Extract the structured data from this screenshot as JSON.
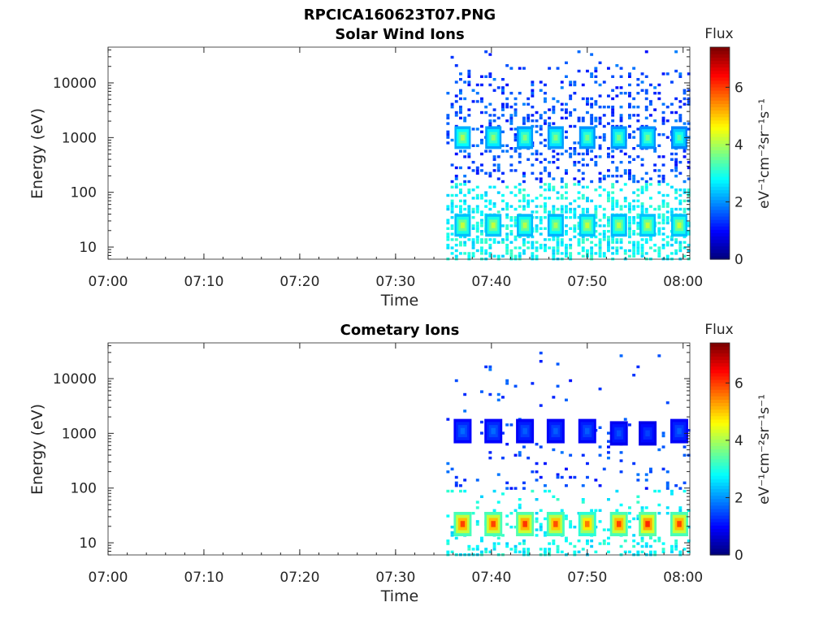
{
  "figure": {
    "title": "RPCICA160623T07.PNG"
  },
  "chart_data": [
    {
      "type": "heatmap",
      "title": "Solar Wind Ions",
      "xlabel": "Time",
      "ylabel": "Energy (eV)",
      "x_tick_labels": [
        "07:00",
        "07:10",
        "07:20",
        "07:30",
        "07:40",
        "07:50",
        "08:00"
      ],
      "x_range_minutes": [
        0,
        60.7
      ],
      "y_scale": "log",
      "y_range": [
        6,
        45000
      ],
      "y_tick_labels": [
        "10",
        "100",
        "1000",
        "10000"
      ],
      "y_tick_values": [
        10,
        100,
        1000,
        10000
      ],
      "data_start_minute": 35.3,
      "colorbar": {
        "title": "Flux",
        "label": "eV⁻¹cm⁻²sr⁻¹s⁻¹",
        "range": [
          0,
          7.4
        ],
        "ticks": [
          0,
          2,
          4,
          6
        ],
        "colormap": "jet"
      },
      "bursts": [
        {
          "t": 37.0,
          "energy": 1000,
          "flux": 4.0
        },
        {
          "t": 40.2,
          "energy": 1000,
          "flux": 3.8
        },
        {
          "t": 43.5,
          "energy": 1000,
          "flux": 3.7
        },
        {
          "t": 46.7,
          "energy": 1000,
          "flux": 3.7
        },
        {
          "t": 50.0,
          "energy": 1000,
          "flux": 3.6
        },
        {
          "t": 53.3,
          "energy": 1000,
          "flux": 3.6
        },
        {
          "t": 56.3,
          "energy": 1000,
          "flux": 3.6
        },
        {
          "t": 59.6,
          "energy": 1000,
          "flux": 3.4
        },
        {
          "t": 37.0,
          "energy": 25,
          "flux": 4.2
        },
        {
          "t": 40.2,
          "energy": 25,
          "flux": 4.2
        },
        {
          "t": 43.5,
          "energy": 25,
          "flux": 4.1
        },
        {
          "t": 46.7,
          "energy": 25,
          "flux": 4.0
        },
        {
          "t": 50.0,
          "energy": 25,
          "flux": 4.2
        },
        {
          "t": 53.3,
          "energy": 25,
          "flux": 4.1
        },
        {
          "t": 56.3,
          "energy": 25,
          "flux": 4.2
        },
        {
          "t": 59.6,
          "energy": 25,
          "flux": 4.2
        }
      ]
    },
    {
      "type": "heatmap",
      "title": "Cometary Ions",
      "xlabel": "Time",
      "ylabel": "Energy (eV)",
      "x_tick_labels": [
        "07:00",
        "07:10",
        "07:20",
        "07:30",
        "07:40",
        "07:50",
        "08:00"
      ],
      "x_range_minutes": [
        0,
        60.7
      ],
      "y_scale": "log",
      "y_range": [
        6,
        45000
      ],
      "y_tick_labels": [
        "10",
        "100",
        "1000",
        "10000"
      ],
      "y_tick_values": [
        10,
        100,
        1000,
        10000
      ],
      "data_start_minute": 35.3,
      "colorbar": {
        "title": "Flux",
        "label": "eV⁻¹cm⁻²sr⁻¹s⁻¹",
        "range": [
          0,
          7.4
        ],
        "ticks": [
          0,
          2,
          4,
          6
        ],
        "colormap": "jet"
      },
      "bursts": [
        {
          "t": 37.0,
          "energy": 22,
          "flux": 6.0
        },
        {
          "t": 40.2,
          "energy": 22,
          "flux": 6.0
        },
        {
          "t": 43.5,
          "energy": 22,
          "flux": 6.1
        },
        {
          "t": 46.7,
          "energy": 22,
          "flux": 5.9
        },
        {
          "t": 50.0,
          "energy": 22,
          "flux": 5.6
        },
        {
          "t": 53.3,
          "energy": 22,
          "flux": 6.0
        },
        {
          "t": 56.3,
          "energy": 22,
          "flux": 6.2
        },
        {
          "t": 59.6,
          "energy": 22,
          "flux": 6.0
        },
        {
          "t": 37.0,
          "energy": 1100,
          "flux": 1.7
        },
        {
          "t": 40.2,
          "energy": 1100,
          "flux": 1.7
        },
        {
          "t": 43.5,
          "energy": 1100,
          "flux": 1.6
        },
        {
          "t": 46.7,
          "energy": 1100,
          "flux": 1.6
        },
        {
          "t": 50.0,
          "energy": 1100,
          "flux": 1.6
        },
        {
          "t": 53.3,
          "energy": 1000,
          "flux": 1.5
        },
        {
          "t": 56.3,
          "energy": 1000,
          "flux": 1.4
        },
        {
          "t": 59.6,
          "energy": 1100,
          "flux": 1.6
        }
      ]
    }
  ]
}
